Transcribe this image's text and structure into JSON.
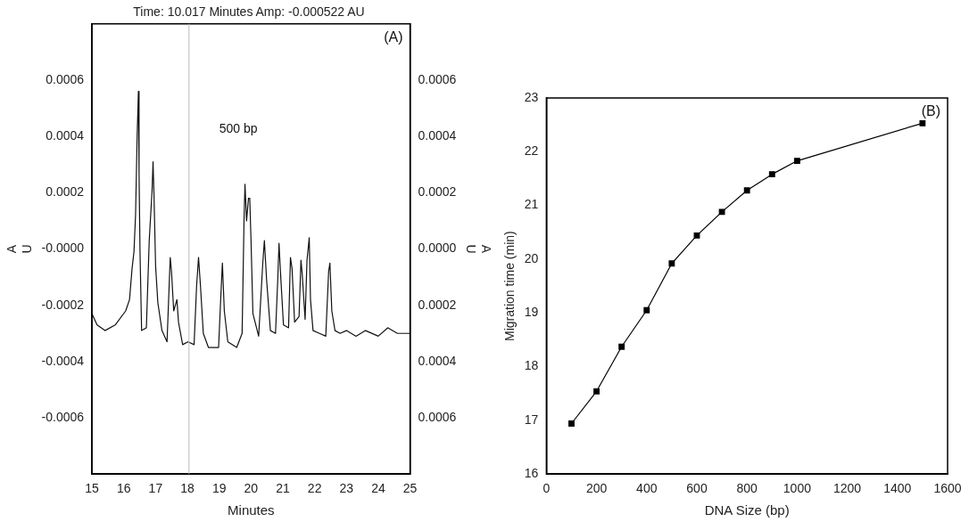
{
  "chart_data": [
    {
      "type": "line",
      "title": "Time: 10.017 Minutes Amp: -0.000522 AU",
      "xlabel": "Minutes",
      "ylabel": "AU",
      "y2label": "AU",
      "xlim": [
        15,
        25
      ],
      "xticks": [
        15,
        16,
        17,
        18,
        19,
        20,
        21,
        22,
        23,
        24,
        25
      ],
      "ylim": [
        -0.0008,
        0.0008
      ],
      "yticks": [
        {
          "value": 0.0006,
          "label": "0.0006"
        },
        {
          "value": 0.0004,
          "label": "0.0004"
        },
        {
          "value": 0.0002,
          "label": "0.0002"
        },
        {
          "value": 0,
          "label": "-0.0000"
        },
        {
          "value": -0.0002,
          "label": "-0.0002"
        },
        {
          "value": -0.0004,
          "label": "-0.0004"
        },
        {
          "value": -0.0006,
          "label": "-0.0006"
        }
      ],
      "y2lim": [
        -0.0008,
        0.0008
      ],
      "y2ticks": [
        {
          "value": 0.0006,
          "label": "0.0006"
        },
        {
          "value": 0.0004,
          "label": "0.0004"
        },
        {
          "value": 0.0002,
          "label": "0.0002"
        },
        {
          "value": 0,
          "label": "0.0000"
        },
        {
          "value": -0.0002,
          "label": "0.0002"
        },
        {
          "value": -0.0004,
          "label": "0.0004"
        },
        {
          "value": -0.0006,
          "label": "0.0006"
        }
      ],
      "ref_lines": [
        {
          "axis": "x",
          "value": 18.05,
          "color": "#bbbbbb"
        }
      ],
      "annotations": [
        "(A)",
        "500 bp"
      ],
      "series": [
        {
          "color": "#111111",
          "x": [
            15.0,
            15.16,
            15.41,
            15.73,
            16.06,
            16.18,
            16.26,
            16.32,
            16.37,
            16.42,
            16.46,
            16.48,
            16.51,
            16.56,
            16.71,
            16.8,
            16.89,
            16.92,
            16.95,
            17.0,
            17.07,
            17.2,
            17.36,
            17.46,
            17.5,
            17.57,
            17.67,
            17.72,
            17.85,
            18.02,
            18.21,
            18.29,
            18.35,
            18.41,
            18.5,
            18.66,
            18.98,
            19.05,
            19.1,
            19.16,
            19.27,
            19.55,
            19.72,
            19.78,
            19.81,
            19.86,
            19.92,
            19.96,
            20.0,
            20.06,
            20.24,
            20.37,
            20.42,
            20.49,
            20.61,
            20.77,
            20.84,
            20.88,
            20.93,
            21.02,
            21.18,
            21.24,
            21.29,
            21.37,
            21.51,
            21.57,
            21.61,
            21.7,
            21.76,
            21.83,
            21.87,
            21.95,
            22.15,
            22.35,
            22.44,
            22.48,
            22.54,
            22.64,
            22.8,
            23.0,
            23.3,
            23.6,
            24.0,
            24.3,
            24.6,
            25.0
          ],
          "values": [
            -0.00023,
            -0.00027,
            -0.00029,
            -0.00027,
            -0.00022,
            -0.00018,
            -7e-05,
            -1e-05,
            0.00012,
            0.0004,
            0.00056,
            0.00027,
            -1e-05,
            -0.00029,
            -0.00028,
            3e-05,
            0.00021,
            0.00031,
            0.00019,
            -6e-05,
            -0.00019,
            -0.00029,
            -0.00033,
            -3e-05,
            -8e-05,
            -0.00022,
            -0.00018,
            -0.00026,
            -0.00034,
            -0.00033,
            -0.00034,
            -0.00013,
            -3e-05,
            -0.00013,
            -0.0003,
            -0.00035,
            -0.00035,
            -0.00017,
            -5e-05,
            -0.00022,
            -0.00033,
            -0.00035,
            -0.0003,
            0.0001,
            0.00023,
            0.0001,
            0.00018,
            0.00018,
            3e-05,
            -0.00023,
            -0.00031,
            -5e-05,
            3e-05,
            -0.00011,
            -0.00029,
            -0.0003,
            -0.00011,
            2e-05,
            -9e-05,
            -0.00027,
            -0.00028,
            -3e-05,
            -7e-05,
            -0.00026,
            -0.00024,
            -4e-05,
            -9e-05,
            -0.00025,
            -4e-05,
            4e-05,
            -0.00018,
            -0.00029,
            -0.0003,
            -0.00031,
            -8e-05,
            -5e-05,
            -0.00022,
            -0.00029,
            -0.0003,
            -0.00029,
            -0.00031,
            -0.00029,
            -0.00031,
            -0.00028,
            -0.0003,
            -0.0003
          ]
        }
      ]
    },
    {
      "type": "line",
      "xlabel": "DNA Size (bp)",
      "ylabel": "Migration time (min)",
      "marker": "square",
      "xlim": [
        0,
        1600
      ],
      "xticks": [
        0,
        200,
        400,
        600,
        800,
        1000,
        1200,
        1400,
        1600
      ],
      "ylim": [
        16,
        23
      ],
      "yticks": [
        16,
        17,
        18,
        19,
        20,
        21,
        22,
        23
      ],
      "annotations": [
        "(B)"
      ],
      "series": [
        {
          "color": "#000000",
          "x": [
            100,
            200,
            300,
            400,
            500,
            600,
            700,
            800,
            900,
            1000,
            1500
          ],
          "values": [
            16.94,
            17.54,
            18.37,
            19.05,
            19.92,
            20.44,
            20.88,
            21.28,
            21.58,
            21.83,
            22.53
          ]
        }
      ]
    }
  ]
}
